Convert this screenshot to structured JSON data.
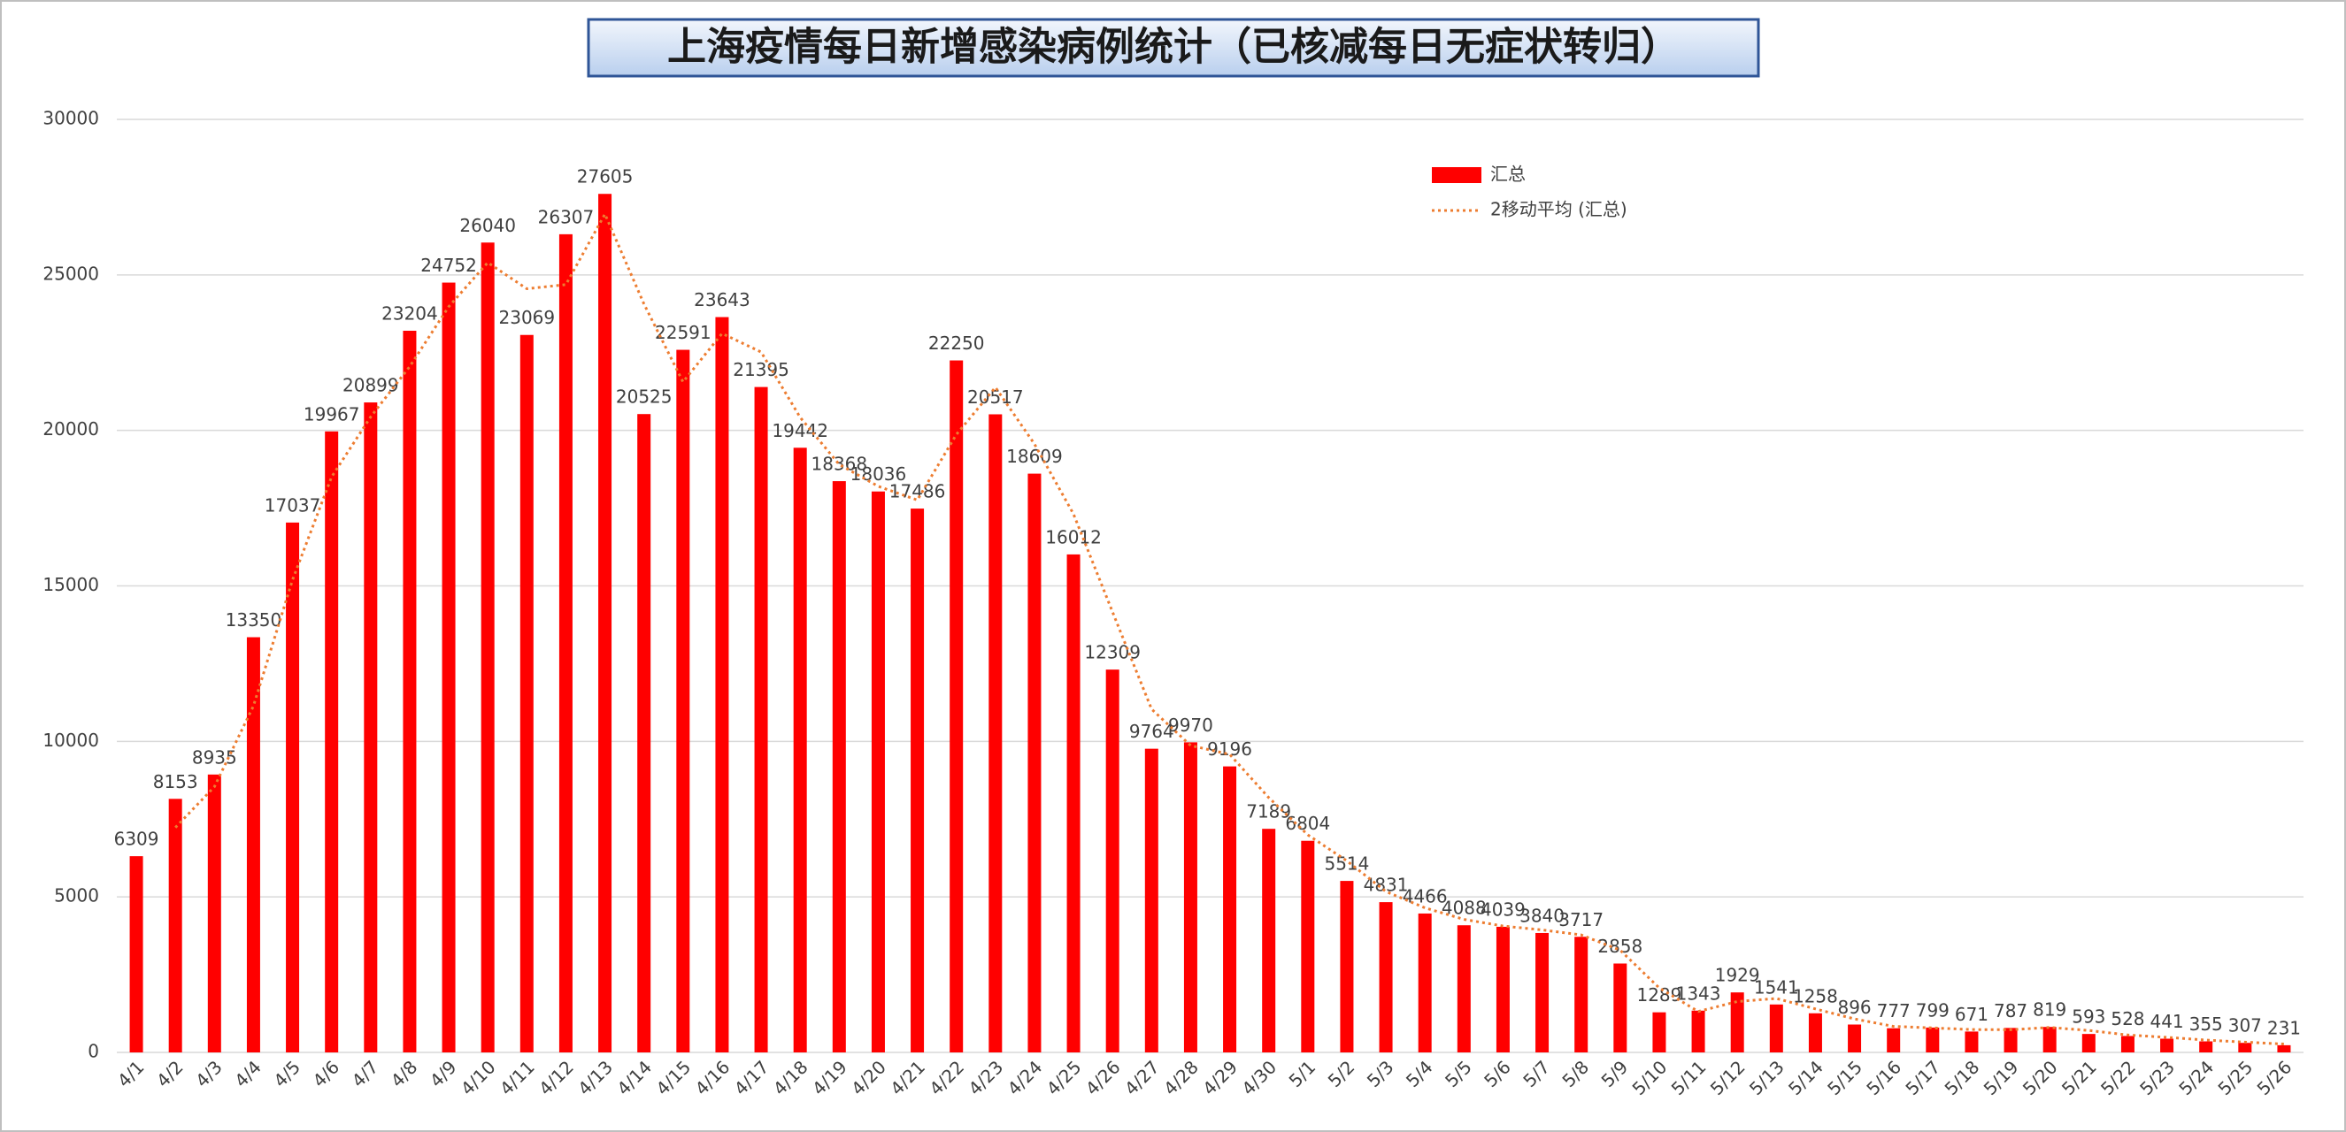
{
  "chart_data": {
    "type": "bar",
    "title": "上海疫情每日新增感染病例统计（已核减每日无症状转归）",
    "categories": [
      "4/1",
      "4/2",
      "4/3",
      "4/4",
      "4/5",
      "4/6",
      "4/7",
      "4/8",
      "4/9",
      "4/10",
      "4/11",
      "4/12",
      "4/13",
      "4/14",
      "4/15",
      "4/16",
      "4/17",
      "4/18",
      "4/19",
      "4/20",
      "4/21",
      "4/22",
      "4/23",
      "4/24",
      "4/25",
      "4/26",
      "4/27",
      "4/28",
      "4/29",
      "4/30",
      "5/1",
      "5/2",
      "5/3",
      "5/4",
      "5/5",
      "5/6",
      "5/7",
      "5/8",
      "5/9",
      "5/10",
      "5/11",
      "5/12",
      "5/13",
      "5/14",
      "5/15",
      "5/16",
      "5/17",
      "5/18",
      "5/19",
      "5/20",
      "5/21",
      "5/22",
      "5/23",
      "5/24",
      "5/25",
      "5/26"
    ],
    "series": [
      {
        "name": "汇总",
        "color": "#ff0000",
        "values": [
          6309,
          8153,
          8935,
          13350,
          17037,
          19967,
          20899,
          23204,
          24752,
          26040,
          23069,
          26307,
          27605,
          20525,
          22591,
          23643,
          21395,
          19442,
          18368,
          18036,
          17486,
          22250,
          20517,
          18609,
          16012,
          12309,
          9764,
          9970,
          9196,
          7189,
          6804,
          5514,
          4831,
          4466,
          4088,
          4039,
          3840,
          3717,
          2858,
          1289,
          1343,
          1929,
          1541,
          1258,
          896,
          777,
          799,
          671,
          787,
          819,
          593,
          528,
          441,
          355,
          307,
          231
        ]
      },
      {
        "name": "2移动平均 (汇总)",
        "color": "#ed7d31",
        "type": "line",
        "values": [
          null,
          7231,
          8544,
          11142.5,
          15193.5,
          18502,
          20433,
          22051.5,
          23978,
          25396,
          24554.5,
          24688,
          26956,
          24065,
          21558,
          23117,
          22519,
          20418.5,
          18905,
          18202,
          17761,
          19868,
          21383.5,
          19563,
          17310.5,
          14160.5,
          11036.5,
          9867,
          9583,
          8192.5,
          6996.5,
          6159,
          5172.5,
          4648.5,
          4277,
          4063.5,
          3939.5,
          3778.5,
          3287.5,
          2073.5,
          1316,
          1636,
          1735,
          1399.5,
          1077,
          836.5,
          788,
          735,
          729,
          803,
          706,
          560.5,
          484.5,
          398,
          331,
          269
        ]
      }
    ],
    "ylim": [
      0,
      30000
    ],
    "yticks": [
      0,
      5000,
      10000,
      15000,
      20000,
      25000,
      30000
    ],
    "grid": true,
    "legend": "top-right"
  }
}
